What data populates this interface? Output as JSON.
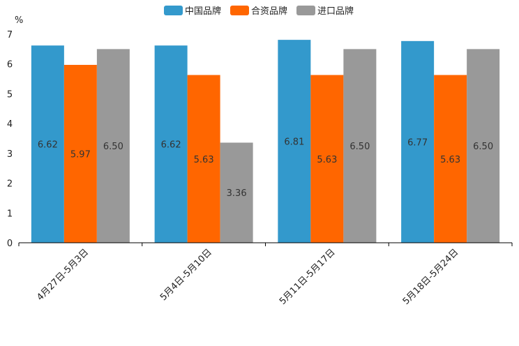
{
  "chart_data": {
    "type": "bar",
    "title": "",
    "xlabel": "",
    "ylabel": "%",
    "ylim": [
      0,
      7
    ],
    "yticks": [
      0,
      1,
      2,
      3,
      4,
      5,
      6,
      7
    ],
    "grid": false,
    "legend_position": "top-center",
    "categories": [
      "4月27日-5月3日",
      "5月4日-5月10日",
      "5月11日-5月17日",
      "5月18日-5月24日"
    ],
    "series": [
      {
        "name": "中国品牌",
        "color": "#3399cc",
        "values": [
          6.62,
          6.62,
          6.81,
          6.77
        ],
        "labels": [
          "6.62",
          "6.62",
          "6.81",
          "6.77"
        ]
      },
      {
        "name": "合资品牌",
        "color": "#ff6600",
        "values": [
          5.97,
          5.63,
          5.63,
          5.63
        ],
        "labels": [
          "5.97",
          "5.63",
          "5.63",
          "5.63"
        ]
      },
      {
        "name": "进口品牌",
        "color": "#999999",
        "values": [
          6.5,
          3.36,
          6.5,
          6.5
        ],
        "labels": [
          "6.50",
          "3.36",
          "6.50",
          "6.50"
        ]
      }
    ]
  }
}
